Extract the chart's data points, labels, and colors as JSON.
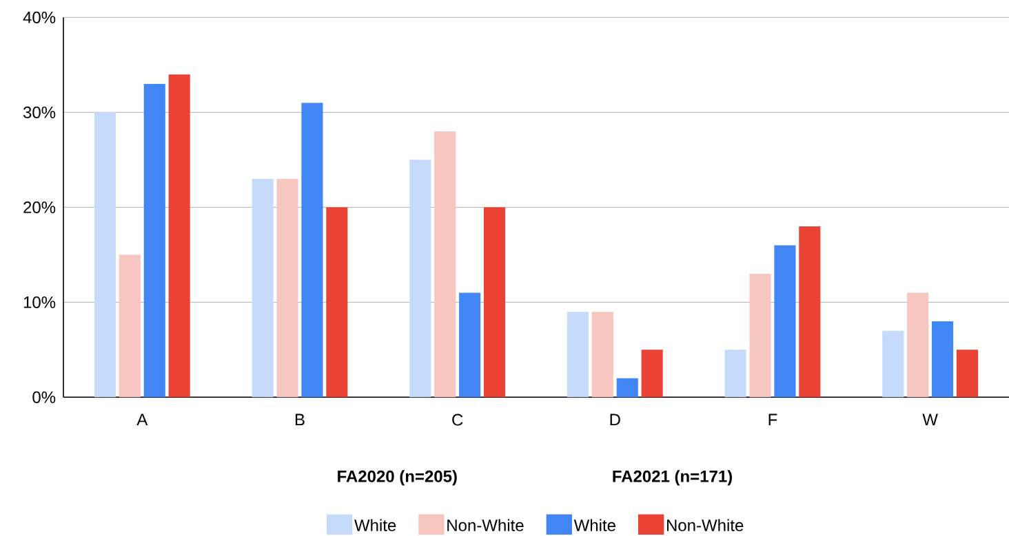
{
  "chart_data": {
    "type": "bar",
    "categories": [
      "A",
      "B",
      "C",
      "D",
      "F",
      "W"
    ],
    "series": [
      {
        "name": "White",
        "color": "#c6dafc",
        "values": [
          30,
          23,
          25,
          9,
          5,
          7
        ]
      },
      {
        "name": "Non-White",
        "color": "#f8c6c1",
        "values": [
          15,
          23,
          28,
          9,
          13,
          11
        ]
      },
      {
        "name": "White",
        "color": "#4285f4",
        "values": [
          33,
          31,
          11,
          2,
          16,
          8
        ]
      },
      {
        "name": "Non-White",
        "color": "#ea4335",
        "values": [
          34,
          20,
          20,
          5,
          18,
          5
        ]
      }
    ],
    "ylim": [
      0,
      40
    ],
    "yticks": [
      {
        "value": 0,
        "label": "0%"
      },
      {
        "value": 10,
        "label": "10%"
      },
      {
        "value": 20,
        "label": "20%"
      },
      {
        "value": 30,
        "label": "30%"
      },
      {
        "value": 40,
        "label": "40%"
      }
    ],
    "grid": "y",
    "legend": "bottom",
    "annotations": [
      "FA2020 (n=205)",
      "FA2021 (n=171)"
    ]
  }
}
